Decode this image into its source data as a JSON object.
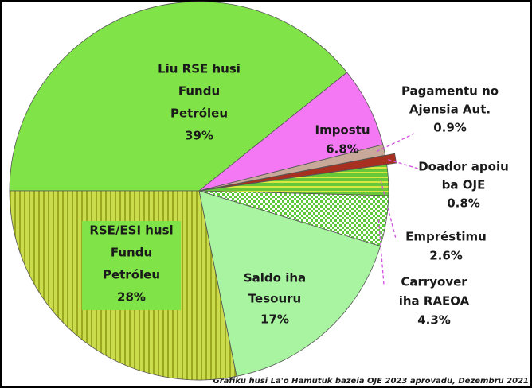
{
  "chart_data": {
    "type": "pie",
    "labels": [
      [
        "Liu RSE husi",
        "Fundu",
        "Petróleu"
      ],
      [
        "Impostu"
      ],
      [
        "Pagamentu no",
        "Ajensia Aut."
      ],
      [
        "Doador apoiu",
        "ba OJE"
      ],
      [
        "Empréstimu"
      ],
      [
        "Carryover",
        "iha RAEOA"
      ],
      [
        "Saldo iha",
        "Tesouru"
      ],
      [
        "RSE/ESI husi",
        "Fundu",
        "Petróleu"
      ]
    ],
    "values": [
      39,
      6.8,
      0.9,
      0.8,
      2.6,
      4.3,
      17,
      28
    ],
    "value_labels": [
      "39%",
      "6.8%",
      "0.9%",
      "0.8%",
      "2.6%",
      "4.3%",
      "17%",
      "28%"
    ],
    "colors": [
      "#80e448",
      "#f478f4",
      "#c8a898",
      "#a83020",
      "#66c838",
      "#5cc838",
      "#a8f4a0",
      "#cadc4c"
    ],
    "patterns": [
      null,
      null,
      null,
      null,
      "stripes-h",
      "checker",
      null,
      "stripes-v"
    ],
    "exploded": [
      3
    ],
    "source": "Grafiku husi La'o Hamutuk bazeia OJE 2023 aprovadu, Dezembru 2021"
  }
}
